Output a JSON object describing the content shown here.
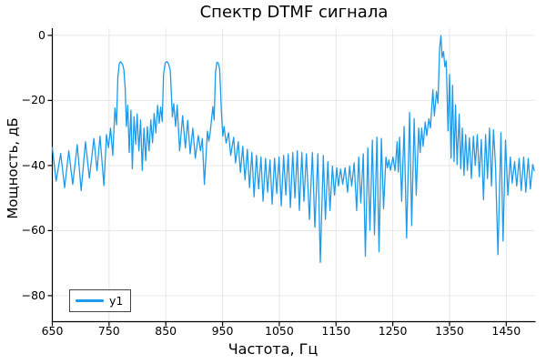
{
  "chart_data": {
    "type": "line",
    "title": "Спектр DTMF сигнала",
    "xlabel": "Частота, Гц",
    "ylabel": "Мощность, дБ",
    "xlim": [
      650,
      1500
    ],
    "ylim": [
      -88,
      2.2
    ],
    "xticks": [
      650,
      750,
      850,
      950,
      1050,
      1150,
      1250,
      1350,
      1450
    ],
    "yticks": [
      0,
      -20,
      -40,
      -60,
      -80
    ],
    "grid": true,
    "grid_color": "#e6e6e6",
    "axis_color": "#000000",
    "line_color": "#1e9beb",
    "background_color": "#ffffff",
    "legend": {
      "position": "bottom-left",
      "entries": [
        {
          "label": "y1",
          "color": "#1e9beb"
        }
      ]
    },
    "series": [
      {
        "name": "y1",
        "points": [
          [
            650,
            -34.5
          ],
          [
            656.7,
            -44.8
          ],
          [
            664.7,
            -36.3
          ],
          [
            671.6,
            -46.8
          ],
          [
            679.1,
            -35.5
          ],
          [
            686,
            -45.8
          ],
          [
            694,
            -33.6
          ],
          [
            700.9,
            -47.7
          ],
          [
            708.4,
            -32.7
          ],
          [
            715.3,
            -43.9
          ],
          [
            723.3,
            -31.7
          ],
          [
            728.7,
            -41.6
          ],
          [
            734,
            -31
          ],
          [
            740.9,
            -46.2
          ],
          [
            745.5,
            -30.5
          ],
          [
            749,
            -34.5
          ],
          [
            752.7,
            -28.5
          ],
          [
            756.5,
            -36.9
          ],
          [
            760.3,
            -22.3
          ],
          [
            763,
            -27.5
          ],
          [
            765.5,
            -13
          ],
          [
            768,
            -8.6
          ],
          [
            770.5,
            -8.1
          ],
          [
            773.5,
            -8.8
          ],
          [
            776,
            -10.5
          ],
          [
            778.5,
            -16.5
          ],
          [
            780.5,
            -28
          ],
          [
            783,
            -21.5
          ],
          [
            785.5,
            -36
          ],
          [
            788.5,
            -23
          ],
          [
            791,
            -41
          ],
          [
            794,
            -25
          ],
          [
            796.9,
            -33.5
          ],
          [
            799.5,
            -24.2
          ],
          [
            802.5,
            -35.5
          ],
          [
            805.5,
            -26
          ],
          [
            808.5,
            -41.5
          ],
          [
            811.5,
            -28.5
          ],
          [
            814.5,
            -38.5
          ],
          [
            817.5,
            -28
          ],
          [
            820.5,
            -35.5
          ],
          [
            823.5,
            -26
          ],
          [
            826.5,
            -33
          ],
          [
            829.5,
            -24
          ],
          [
            832.5,
            -30
          ],
          [
            835.5,
            -21.5
          ],
          [
            838.5,
            -27
          ],
          [
            841,
            -22
          ],
          [
            843.8,
            -26.5
          ],
          [
            846,
            -12
          ],
          [
            849,
            -8.4
          ],
          [
            852,
            -8.1
          ],
          [
            855,
            -8.7
          ],
          [
            858,
            -11
          ],
          [
            861.5,
            -25
          ],
          [
            864,
            -21
          ],
          [
            867.3,
            -28
          ],
          [
            870,
            -21.4
          ],
          [
            874.3,
            -35.5
          ],
          [
            879.6,
            -24.7
          ],
          [
            884.4,
            -34.6
          ],
          [
            888.7,
            -26.1
          ],
          [
            892.9,
            -36.4
          ],
          [
            897.7,
            -28.5
          ],
          [
            902,
            -37.8
          ],
          [
            907.3,
            -30.8
          ],
          [
            911.1,
            -35.5
          ],
          [
            914.3,
            -31.7
          ],
          [
            918,
            -45.8
          ],
          [
            923.3,
            -29.4
          ],
          [
            925.8,
            -32.5
          ],
          [
            928.3,
            -29.8
          ],
          [
            932.9,
            -21.9
          ],
          [
            935.2,
            -26
          ],
          [
            937.5,
            -11.5
          ],
          [
            940,
            -8.3
          ],
          [
            942.5,
            -8.5
          ],
          [
            945,
            -10.5
          ],
          [
            948,
            -23.4
          ],
          [
            950.5,
            -31
          ],
          [
            952.7,
            -28
          ],
          [
            956.4,
            -33.1
          ],
          [
            960.7,
            -29.9
          ],
          [
            964.4,
            -36.9
          ],
          [
            969.7,
            -31.3
          ],
          [
            972.9,
            -39.2
          ],
          [
            977.7,
            -32.7
          ],
          [
            981.5,
            -42.1
          ],
          [
            985.7,
            -34.1
          ],
          [
            989.5,
            -44.4
          ],
          [
            993.7,
            -35
          ],
          [
            997.5,
            -46.8
          ],
          [
            1001.7,
            -36
          ],
          [
            1005.5,
            -49.6
          ],
          [
            1009.7,
            -36.9
          ],
          [
            1013.5,
            -47.2
          ],
          [
            1017.7,
            -37.4
          ],
          [
            1021.5,
            -51
          ],
          [
            1025.7,
            -37.8
          ],
          [
            1029.5,
            -48.2
          ],
          [
            1033.7,
            -38.3
          ],
          [
            1037.5,
            -51.9
          ],
          [
            1041.7,
            -37.8
          ],
          [
            1045.5,
            -48.6
          ],
          [
            1049.7,
            -37.4
          ],
          [
            1053.5,
            -52.4
          ],
          [
            1057.7,
            -36.9
          ],
          [
            1061.5,
            -49.1
          ],
          [
            1065.7,
            -36.4
          ],
          [
            1069.5,
            -52.9
          ],
          [
            1073.7,
            -36
          ],
          [
            1077.5,
            -50
          ],
          [
            1081.7,
            -35.5
          ],
          [
            1085.5,
            -53.8
          ],
          [
            1089.7,
            -36
          ],
          [
            1093.5,
            -51
          ],
          [
            1097.7,
            -36.4
          ],
          [
            1103.1,
            -56.6
          ],
          [
            1108.4,
            -36
          ],
          [
            1112.7,
            -59
          ],
          [
            1118,
            -36.4
          ],
          [
            1122.3,
            -69.8
          ],
          [
            1127.6,
            -36.9
          ],
          [
            1131.3,
            -56.6
          ],
          [
            1135.6,
            -38.8
          ],
          [
            1139.3,
            -53.8
          ],
          [
            1143.6,
            -40.2
          ],
          [
            1147.3,
            -49.1
          ],
          [
            1151.1,
            -40.7
          ],
          [
            1154.3,
            -46.3
          ],
          [
            1158,
            -41.1
          ],
          [
            1161.7,
            -45.8
          ],
          [
            1166,
            -40.7
          ],
          [
            1170.3,
            -48.2
          ],
          [
            1174,
            -40.2
          ],
          [
            1177.7,
            -46.3
          ],
          [
            1182,
            -39.2
          ],
          [
            1186.3,
            -53.8
          ],
          [
            1190,
            -37.4
          ],
          [
            1193.7,
            -51.5
          ],
          [
            1198,
            -36.4
          ],
          [
            1201.7,
            -67.9
          ],
          [
            1206,
            -34.6
          ],
          [
            1209.7,
            -59.9
          ],
          [
            1214,
            -32.2
          ],
          [
            1217.7,
            -61.3
          ],
          [
            1222,
            -31.3
          ],
          [
            1225.7,
            -66.5
          ],
          [
            1230,
            -31.7
          ],
          [
            1233.7,
            -53.3
          ],
          [
            1238,
            -37.4
          ],
          [
            1240.7,
            -40.7
          ],
          [
            1243.3,
            -38.3
          ],
          [
            1246,
            -41.5
          ],
          [
            1250.3,
            -37.4
          ],
          [
            1254,
            -41.6
          ],
          [
            1257.7,
            -32.7
          ],
          [
            1259.8,
            -42
          ],
          [
            1262,
            -31.3
          ],
          [
            1265.7,
            -51
          ],
          [
            1270,
            -28
          ],
          [
            1274.3,
            -62.3
          ],
          [
            1279.6,
            -23.7
          ],
          [
            1283.3,
            -58.5
          ],
          [
            1287.6,
            -25.6
          ],
          [
            1291.3,
            -49.1
          ],
          [
            1295.6,
            -28.5
          ],
          [
            1298.3,
            -36
          ],
          [
            1301,
            -28.5
          ],
          [
            1303.5,
            -34.1
          ],
          [
            1307.3,
            -26.6
          ],
          [
            1310,
            -30.8
          ],
          [
            1313.7,
            -25.6
          ],
          [
            1316.4,
            -28.5
          ],
          [
            1320.7,
            -16.7
          ],
          [
            1323.3,
            -24.7
          ],
          [
            1327.1,
            -17.2
          ],
          [
            1329.7,
            -20.9
          ],
          [
            1332.5,
            -4
          ],
          [
            1334.8,
            -0.1
          ],
          [
            1337,
            -6.8
          ],
          [
            1339.5,
            -5
          ],
          [
            1341.8,
            -9.7
          ],
          [
            1344.3,
            -7.8
          ],
          [
            1347.3,
            -29.4
          ],
          [
            1350,
            -12
          ],
          [
            1352.7,
            -37.8
          ],
          [
            1355.3,
            -15.3
          ],
          [
            1358,
            -38.8
          ],
          [
            1360.7,
            -21.4
          ],
          [
            1363.3,
            -39.7
          ],
          [
            1367.1,
            -24.2
          ],
          [
            1369.8,
            -41
          ],
          [
            1372.5,
            -28.5
          ],
          [
            1375.5,
            -43
          ],
          [
            1378.5,
            -30.5
          ],
          [
            1381.5,
            -41.5
          ],
          [
            1385,
            -31.5
          ],
          [
            1388.5,
            -44
          ],
          [
            1392,
            -31
          ],
          [
            1395.5,
            -40
          ],
          [
            1399,
            -30.5
          ],
          [
            1402.5,
            -43.5
          ],
          [
            1406,
            -32
          ],
          [
            1409.8,
            -50.5
          ],
          [
            1413.5,
            -30.5
          ],
          [
            1417,
            -44
          ],
          [
            1420.5,
            -28.5
          ],
          [
            1424,
            -46.3
          ],
          [
            1427.5,
            -29
          ],
          [
            1431,
            -40
          ],
          [
            1435.3,
            -67.4
          ],
          [
            1440.7,
            -29.9
          ],
          [
            1444.4,
            -63.2
          ],
          [
            1448.7,
            -32.2
          ],
          [
            1452.9,
            -49.1
          ],
          [
            1457.2,
            -37.4
          ],
          [
            1460.4,
            -45.4
          ],
          [
            1464.7,
            -38.8
          ],
          [
            1468.4,
            -46.3
          ],
          [
            1472.7,
            -37.8
          ],
          [
            1476.4,
            -47.7
          ],
          [
            1480.7,
            -37.4
          ],
          [
            1484.4,
            -48.2
          ],
          [
            1488.7,
            -37.8
          ],
          [
            1492.4,
            -47.2
          ],
          [
            1496.7,
            -39.7
          ],
          [
            1499.3,
            -41.6
          ]
        ]
      }
    ]
  }
}
